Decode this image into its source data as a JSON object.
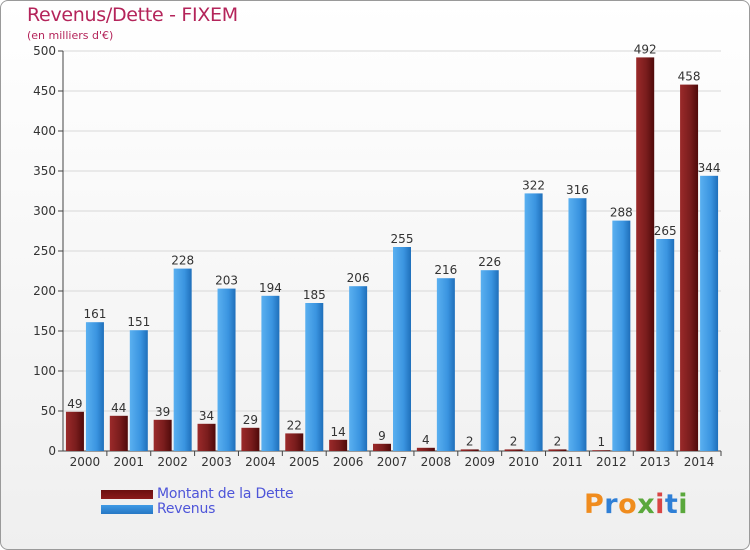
{
  "chart_data": {
    "type": "bar",
    "title": "Revenus/Dette - FIXEM",
    "subtitle": "(en milliers d'€)",
    "categories": [
      "2000",
      "2001",
      "2002",
      "2003",
      "2004",
      "2005",
      "2006",
      "2007",
      "2008",
      "2009",
      "2010",
      "2011",
      "2012",
      "2013",
      "2014"
    ],
    "series": [
      {
        "name": "Montant de la Dette",
        "color": "#8b1a1a",
        "values": [
          49,
          44,
          39,
          34,
          29,
          22,
          14,
          9,
          4,
          2,
          2,
          2,
          1,
          492,
          458
        ]
      },
      {
        "name": "Revenus",
        "color": "#3f9ae5",
        "values": [
          161,
          151,
          228,
          203,
          194,
          185,
          206,
          255,
          216,
          226,
          322,
          316,
          288,
          265,
          344
        ]
      }
    ],
    "ylim": [
      0,
      500
    ],
    "yticks": [
      0,
      50,
      100,
      150,
      200,
      250,
      300,
      350,
      400,
      450,
      500
    ],
    "grid": true,
    "legend": "bottom-left",
    "data_labels": true
  },
  "brand": {
    "letters": [
      "P",
      "r",
      "o",
      "x",
      "i",
      "t",
      "i"
    ],
    "colors": [
      "#f08c1e",
      "#2f7fd6",
      "#f08c1e",
      "#5aa83c",
      "#d94545",
      "#2f7fd6",
      "#5aa83c"
    ]
  }
}
